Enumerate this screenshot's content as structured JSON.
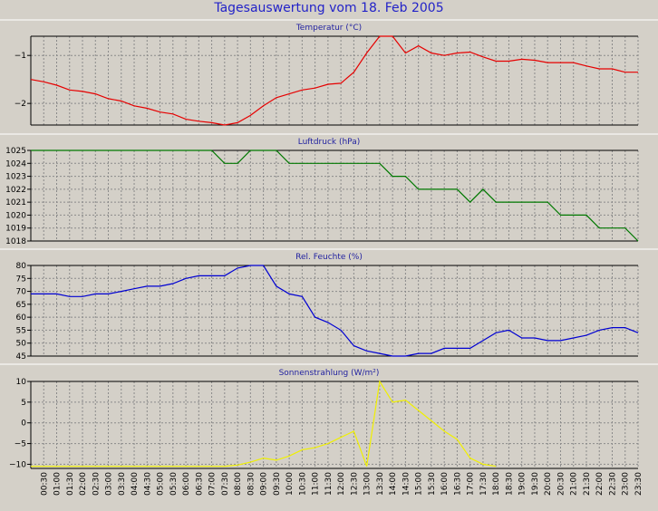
{
  "title": "Tagesauswertung vom 18. Feb 2005",
  "colors": {
    "background": "#d4d0c8",
    "temperature": "#e60000",
    "pressure": "#007800",
    "humidity": "#0000d2",
    "radiation": "#f0f000",
    "title": "#2323c8"
  },
  "time_labels": [
    "00:30",
    "01:00",
    "01:30",
    "02:00",
    "02:30",
    "03:00",
    "03:30",
    "04:00",
    "04:30",
    "05:00",
    "05:30",
    "06:00",
    "06:30",
    "07:00",
    "07:30",
    "08:00",
    "08:30",
    "09:00",
    "09:30",
    "10:00",
    "10:30",
    "11:00",
    "11:30",
    "12:00",
    "12:30",
    "13:00",
    "13:30",
    "14:00",
    "14:30",
    "15:00",
    "15:30",
    "16:00",
    "16:30",
    "17:00",
    "17:30",
    "18:00",
    "18:30",
    "19:00",
    "19:30",
    "20:00",
    "20:30",
    "21:00",
    "21:30",
    "22:00",
    "22:30",
    "23:00",
    "23:30"
  ],
  "chart_data": [
    {
      "type": "line",
      "title": "Temperatur (°C)",
      "ylim": [
        -2.45,
        -0.6
      ],
      "yticks": [
        -1,
        -2
      ],
      "grid": true,
      "series": [
        {
          "color": "#e60000",
          "values": [
            -1.5,
            -1.55,
            -1.62,
            -1.72,
            -1.75,
            -1.8,
            -1.9,
            -1.95,
            -2.05,
            -2.1,
            -2.18,
            -2.22,
            -2.33,
            -2.37,
            -2.4,
            -2.45,
            -2.4,
            -2.25,
            -2.05,
            -1.88,
            -1.8,
            -1.72,
            -1.68,
            -1.6,
            -1.58,
            -1.35,
            -0.95,
            -0.6,
            -0.6,
            -0.95,
            -0.8,
            -0.95,
            -1.0,
            -0.95,
            -0.93,
            -1.03,
            -1.12,
            -1.12,
            -1.08,
            -1.1,
            -1.15,
            -1.15,
            -1.15,
            -1.22,
            -1.28,
            -1.28,
            -1.35,
            -1.35
          ]
        }
      ]
    },
    {
      "type": "line",
      "title": "Luftdruck (hPa)",
      "ylim": [
        1018,
        1025
      ],
      "yticks": [
        1025,
        1024,
        1023,
        1022,
        1021,
        1020,
        1019,
        1018
      ],
      "grid": true,
      "series": [
        {
          "color": "#007800",
          "values": [
            1025,
            1025,
            1025,
            1025,
            1025,
            1025,
            1025,
            1025,
            1025,
            1025,
            1025,
            1025,
            1025,
            1025,
            1025,
            1024,
            1024,
            1025,
            1025,
            1025,
            1024,
            1024,
            1024,
            1024,
            1024,
            1024,
            1024,
            1024,
            1023,
            1023,
            1022,
            1022,
            1022,
            1022,
            1021,
            1022,
            1021,
            1021,
            1021,
            1021,
            1021,
            1020,
            1020,
            1020,
            1019,
            1019,
            1019,
            1018
          ]
        }
      ]
    },
    {
      "type": "line",
      "title": "Rel. Feuchte (%)",
      "ylim": [
        45,
        80
      ],
      "yticks": [
        80,
        75,
        70,
        65,
        60,
        55,
        50,
        45
      ],
      "grid": true,
      "series": [
        {
          "color": "#0000d2",
          "values": [
            69,
            69,
            69,
            68,
            68,
            69,
            69,
            70,
            71,
            72,
            72,
            73,
            75,
            76,
            76,
            76,
            79,
            80,
            80,
            72,
            69,
            68,
            60,
            58,
            55,
            49,
            47,
            46,
            45,
            45,
            46,
            46,
            48,
            48,
            48,
            51,
            54,
            55,
            52,
            52,
            51,
            51,
            52,
            53,
            55,
            56,
            56,
            54
          ]
        }
      ]
    },
    {
      "type": "line",
      "title": "Sonnenstrahlung (W/m²)",
      "ylim": [
        -11,
        10
      ],
      "yticks": [
        10,
        5,
        0,
        -5,
        -10
      ],
      "grid": true,
      "series": [
        {
          "color": "#f0f000",
          "values": [
            -10.5,
            -10.5,
            -10.5,
            -10.5,
            -10.5,
            -10.5,
            -10.5,
            -10.5,
            -10.5,
            -10.5,
            -10.5,
            -10.5,
            -10.5,
            -10.5,
            -10.5,
            -10.5,
            -10.2,
            -9.5,
            -8.5,
            -9.0,
            -8.0,
            -6.5,
            -6.0,
            -5.0,
            -3.5,
            -2.0,
            -10.5,
            10.0,
            5.0,
            5.5,
            3.0,
            0.5,
            -2.0,
            -4.0,
            -8.5,
            -10.0,
            -10.5,
            null,
            null,
            null,
            null,
            null,
            null,
            null,
            null,
            null,
            null,
            null
          ]
        }
      ]
    }
  ]
}
